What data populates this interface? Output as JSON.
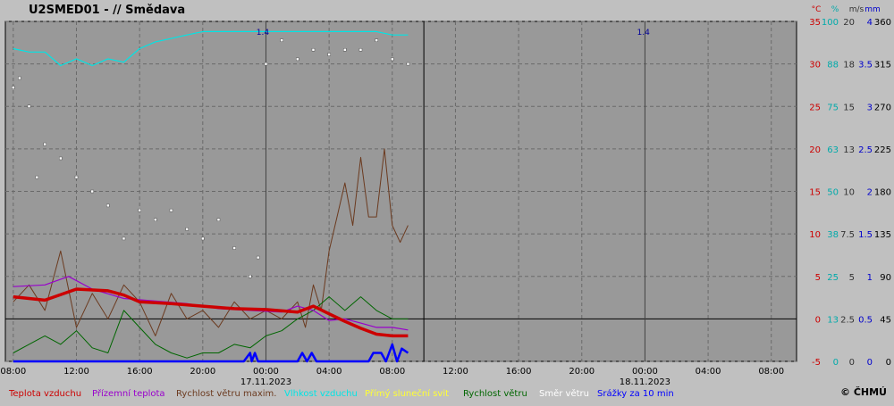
{
  "header": {
    "title": "U2SMED01 - // Smědava",
    "copyright": "© ČHMÚ"
  },
  "axes": {
    "units": [
      {
        "label": "°C",
        "color": "#cc0000"
      },
      {
        "label": "%",
        "color": "#00aaaa"
      },
      {
        "label": "m/s",
        "color": "#333333"
      },
      {
        "label": "mm",
        "color": "#0000cc"
      }
    ],
    "temp_ticks": [
      "35",
      "30",
      "25",
      "20",
      "15",
      "10",
      "5",
      "0",
      "-5"
    ],
    "humidity_ticks": [
      "100",
      "88",
      "75",
      "63",
      "50",
      "38",
      "25",
      "13",
      "0"
    ],
    "wind_ticks": [
      "20",
      "18",
      "15",
      "13",
      "10",
      "7.5",
      "5",
      "2.5",
      "0"
    ],
    "precip_ticks": [
      "4",
      "3.5",
      "3",
      "2.5",
      "2",
      "1.5",
      "1",
      "0.5",
      "0"
    ],
    "direction_ticks": [
      "360",
      "315",
      "270",
      "225",
      "180",
      "135",
      "90",
      "45",
      "0"
    ],
    "x_ticks": [
      "08:00",
      "12:00",
      "16:00",
      "20:00",
      "00:00",
      "04:00",
      "08:00",
      "12:00",
      "16:00",
      "20:00",
      "00:00",
      "04:00",
      "08:00"
    ],
    "date_labels": [
      {
        "text": "17.11.2023",
        "at_hour": 16
      },
      {
        "text": "18.11.2023",
        "at_hour": 40
      }
    ],
    "marker_label": "1.4",
    "marker_positions_hours": [
      15.8,
      39.9
    ]
  },
  "legend": [
    {
      "label": "Teplota vzduchu",
      "color": "#cc0000"
    },
    {
      "label": "Přízemní teplota",
      "color": "#9900cc"
    },
    {
      "label": "Rychlost větru maxim.",
      "color": "#6b3a1f"
    },
    {
      "label": "Vlhkost vzduchu",
      "color": "#00e5e5"
    },
    {
      "label": "Přímý sluneční svit",
      "color": "#ffff33"
    },
    {
      "label": "Rychlost větru",
      "color": "#006600"
    },
    {
      "label": "Směr větru",
      "color": "#ffffff"
    },
    {
      "label": "Srážky za 10 min",
      "color": "#0000ff"
    }
  ],
  "chart_data": {
    "type": "line",
    "title": "U2SMED01 - // Smědava",
    "x_range_hours": [
      -0.5,
      49.6
    ],
    "x_note": "hours since 16.11.2023 08:00",
    "temp_range": [
      -5,
      35
    ],
    "grid": true,
    "series": [
      {
        "name": "Teplota vzduchu",
        "axis": "temp",
        "points": [
          [
            0,
            2.6
          ],
          [
            2,
            2.2
          ],
          [
            4,
            3.5
          ],
          [
            6,
            3.3
          ],
          [
            7,
            2.8
          ],
          [
            8,
            2.0
          ],
          [
            10,
            1.8
          ],
          [
            12,
            1.5
          ],
          [
            14,
            1.2
          ],
          [
            16,
            1.1
          ],
          [
            18,
            0.8
          ],
          [
            19,
            1.5
          ],
          [
            20,
            0.6
          ],
          [
            21,
            -0.3
          ],
          [
            22,
            -1.1
          ],
          [
            23,
            -1.8
          ],
          [
            24,
            -2.0
          ],
          [
            25,
            -2.0
          ]
        ]
      },
      {
        "name": "Přízemní teplota",
        "axis": "temp",
        "points": [
          [
            0,
            3.8
          ],
          [
            2,
            4.0
          ],
          [
            3.5,
            5.0
          ],
          [
            5,
            3.5
          ],
          [
            7,
            2.4
          ],
          [
            9,
            2.1
          ],
          [
            11,
            1.8
          ],
          [
            13,
            1.2
          ],
          [
            15,
            1.0
          ],
          [
            17,
            0.8
          ],
          [
            18,
            1.5
          ],
          [
            19,
            1.0
          ],
          [
            20,
            -0.2
          ],
          [
            21,
            0.0
          ],
          [
            22,
            -0.5
          ],
          [
            23,
            -1.0
          ],
          [
            24,
            -1.0
          ],
          [
            25,
            -1.3
          ]
        ]
      },
      {
        "name": "Rychlost větru maxim.",
        "axis": "wind",
        "points": [
          [
            0,
            3.5
          ],
          [
            1,
            4.5
          ],
          [
            2,
            3.0
          ],
          [
            3,
            6.5
          ],
          [
            4,
            2.0
          ],
          [
            5,
            4.0
          ],
          [
            6,
            2.5
          ],
          [
            7,
            4.5
          ],
          [
            8,
            3.5
          ],
          [
            9,
            1.5
          ],
          [
            10,
            4.0
          ],
          [
            11,
            2.5
          ],
          [
            12,
            3.0
          ],
          [
            13,
            2.0
          ],
          [
            14,
            3.5
          ],
          [
            15,
            2.5
          ],
          [
            16,
            3.0
          ],
          [
            17,
            2.5
          ],
          [
            18,
            3.5
          ],
          [
            18.5,
            2.0
          ],
          [
            19,
            4.5
          ],
          [
            19.5,
            3.0
          ],
          [
            20,
            6.5
          ],
          [
            20.5,
            8.5
          ],
          [
            21,
            10.5
          ],
          [
            21.5,
            8.0
          ],
          [
            22,
            12.0
          ],
          [
            22.5,
            8.5
          ],
          [
            23,
            8.5
          ],
          [
            23.5,
            12.5
          ],
          [
            24,
            8.0
          ],
          [
            24.5,
            7.0
          ],
          [
            25,
            8.0
          ]
        ]
      },
      {
        "name": "Vlhkost vzduchu",
        "axis": "humidity",
        "points": [
          [
            0,
            92
          ],
          [
            1,
            91
          ],
          [
            2,
            91
          ],
          [
            3,
            87
          ],
          [
            4,
            89
          ],
          [
            5,
            87
          ],
          [
            6,
            89
          ],
          [
            7,
            88
          ],
          [
            8,
            92
          ],
          [
            9,
            94
          ],
          [
            10,
            95
          ],
          [
            11,
            96
          ],
          [
            12,
            97
          ],
          [
            13,
            97
          ],
          [
            14,
            97
          ],
          [
            15,
            97
          ],
          [
            16,
            97
          ],
          [
            17,
            97
          ],
          [
            18,
            97
          ],
          [
            19,
            97
          ],
          [
            20,
            97
          ],
          [
            21,
            97
          ],
          [
            22,
            97
          ],
          [
            23,
            97
          ],
          [
            24,
            96
          ],
          [
            25,
            96
          ]
        ]
      },
      {
        "name": "Rychlost větru",
        "axis": "wind",
        "points": [
          [
            0,
            0.5
          ],
          [
            1,
            1.0
          ],
          [
            2,
            1.5
          ],
          [
            3,
            1.0
          ],
          [
            4,
            1.8
          ],
          [
            5,
            0.8
          ],
          [
            6,
            0.5
          ],
          [
            7,
            3.0
          ],
          [
            8,
            2.0
          ],
          [
            9,
            1.0
          ],
          [
            10,
            0.5
          ],
          [
            11,
            0.2
          ],
          [
            12,
            0.5
          ],
          [
            13,
            0.5
          ],
          [
            14,
            1.0
          ],
          [
            15,
            0.8
          ],
          [
            16,
            1.5
          ],
          [
            17,
            1.8
          ],
          [
            18,
            2.5
          ],
          [
            19,
            3.0
          ],
          [
            20,
            3.8
          ],
          [
            21,
            3.0
          ],
          [
            22,
            3.8
          ],
          [
            23,
            3.0
          ],
          [
            24,
            2.5
          ],
          [
            25,
            2.5
          ]
        ]
      },
      {
        "name": "Směr větru",
        "axis": "direction",
        "points": [
          [
            0,
            290
          ],
          [
            0.4,
            300
          ],
          [
            1,
            270
          ],
          [
            1.5,
            195
          ],
          [
            2,
            230
          ],
          [
            3,
            215
          ],
          [
            4,
            195
          ],
          [
            5,
            180
          ],
          [
            6,
            165
          ],
          [
            7,
            130
          ],
          [
            8,
            160
          ],
          [
            9,
            150
          ],
          [
            10,
            160
          ],
          [
            11,
            140
          ],
          [
            12,
            130
          ],
          [
            13,
            150
          ],
          [
            14,
            120
          ],
          [
            15,
            90
          ],
          [
            15.5,
            110
          ],
          [
            16,
            315
          ],
          [
            17,
            340
          ],
          [
            18,
            320
          ],
          [
            19,
            330
          ],
          [
            20,
            325
          ],
          [
            21,
            330
          ],
          [
            22,
            330
          ],
          [
            23,
            340
          ],
          [
            24,
            320
          ],
          [
            25,
            315
          ]
        ]
      },
      {
        "name": "Srážky za 10 min",
        "axis": "precip",
        "points": [
          [
            0,
            0
          ],
          [
            14.6,
            0
          ],
          [
            15.0,
            0.1
          ],
          [
            15.1,
            0
          ],
          [
            15.3,
            0.1
          ],
          [
            15.5,
            0
          ],
          [
            18.0,
            0
          ],
          [
            18.3,
            0.1
          ],
          [
            18.6,
            0
          ],
          [
            18.9,
            0.1
          ],
          [
            19.2,
            0
          ],
          [
            22.5,
            0
          ],
          [
            22.8,
            0.1
          ],
          [
            23.3,
            0.1
          ],
          [
            23.6,
            0
          ],
          [
            24.0,
            0.2
          ],
          [
            24.3,
            0
          ],
          [
            24.6,
            0.15
          ],
          [
            25,
            0.1
          ]
        ]
      }
    ]
  }
}
